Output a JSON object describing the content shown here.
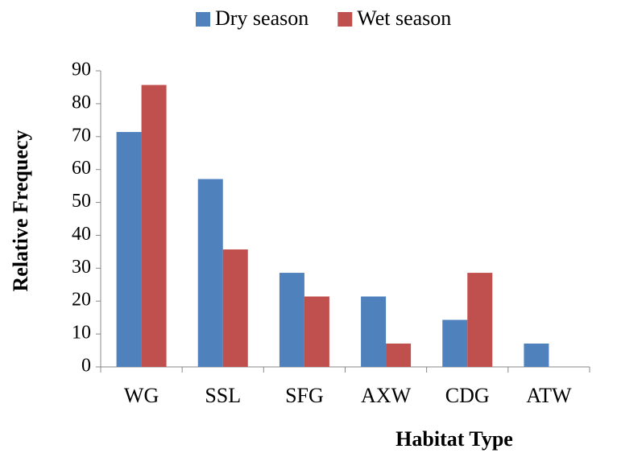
{
  "chart_data": {
    "type": "bar",
    "x_label": "Habitat Type",
    "y_label": "Relative Frequecy",
    "categories": [
      "WG",
      "SSL",
      "SFG",
      "AXW",
      "CDG",
      "ATW"
    ],
    "series": [
      {
        "name": "Dry season",
        "color": "#4f81bd",
        "values": [
          71.4,
          57.1,
          28.6,
          21.4,
          14.3,
          7.1
        ]
      },
      {
        "name": "Wet season",
        "color": "#c0504d",
        "values": [
          85.7,
          35.7,
          21.4,
          7.1,
          28.6,
          0
        ]
      }
    ],
    "ylim": [
      0,
      90
    ],
    "yticks": [
      0,
      10,
      20,
      30,
      40,
      50,
      60,
      70,
      80,
      90
    ],
    "legend": "top"
  }
}
